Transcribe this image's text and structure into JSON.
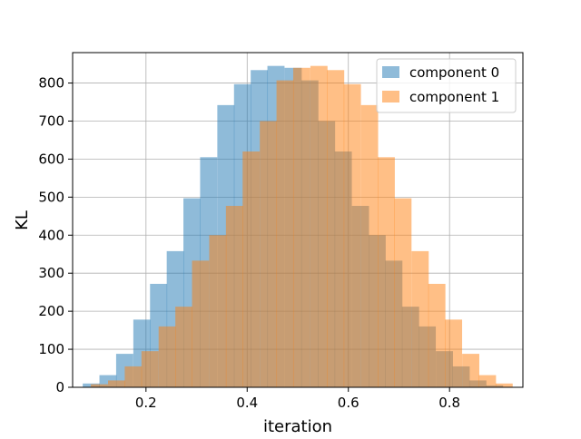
{
  "chart_data": {
    "type": "bar",
    "title": "",
    "xlabel": "iteration",
    "ylabel": "KL",
    "xlim": [
      0.055,
      0.945
    ],
    "ylim": [
      0,
      880
    ],
    "grid": true,
    "legend_position": "top-right",
    "x_ticks": [
      0.2,
      0.4,
      0.6,
      0.8
    ],
    "x_tick_labels": [
      "0.2",
      "0.4",
      "0.6",
      "0.8"
    ],
    "y_ticks": [
      0,
      100,
      200,
      300,
      400,
      500,
      600,
      700,
      800
    ],
    "y_tick_labels": [
      "0",
      "100",
      "200",
      "300",
      "400",
      "500",
      "600",
      "700",
      "800"
    ],
    "bin_width": 0.0333,
    "series": [
      {
        "name": "component 0",
        "color": "#1f77b4",
        "opacity": 0.5,
        "bin_starts": [
          0.075,
          0.108,
          0.141,
          0.175,
          0.208,
          0.241,
          0.274,
          0.307,
          0.341,
          0.374,
          0.407,
          0.44,
          0.474,
          0.507,
          0.54,
          0.573,
          0.607,
          0.64,
          0.673,
          0.706,
          0.739,
          0.773,
          0.806,
          0.839,
          0.872
        ],
        "values": [
          10,
          32,
          88,
          178,
          272,
          358,
          497,
          605,
          742,
          797,
          834,
          845,
          840,
          807,
          700,
          620,
          477,
          400,
          333,
          212,
          160,
          95,
          55,
          18,
          5
        ]
      },
      {
        "name": "component 1",
        "color": "#ff7f0e",
        "opacity": 0.5,
        "bin_starts": [
          0.091,
          0.125,
          0.158,
          0.191,
          0.225,
          0.258,
          0.291,
          0.325,
          0.358,
          0.391,
          0.425,
          0.458,
          0.491,
          0.525,
          0.558,
          0.591,
          0.625,
          0.658,
          0.691,
          0.725,
          0.758,
          0.791,
          0.825,
          0.858,
          0.891
        ],
        "values": [
          8,
          18,
          55,
          95,
          160,
          212,
          333,
          400,
          477,
          620,
          700,
          807,
          840,
          845,
          834,
          797,
          742,
          605,
          497,
          358,
          272,
          178,
          88,
          32,
          10
        ]
      }
    ]
  }
}
